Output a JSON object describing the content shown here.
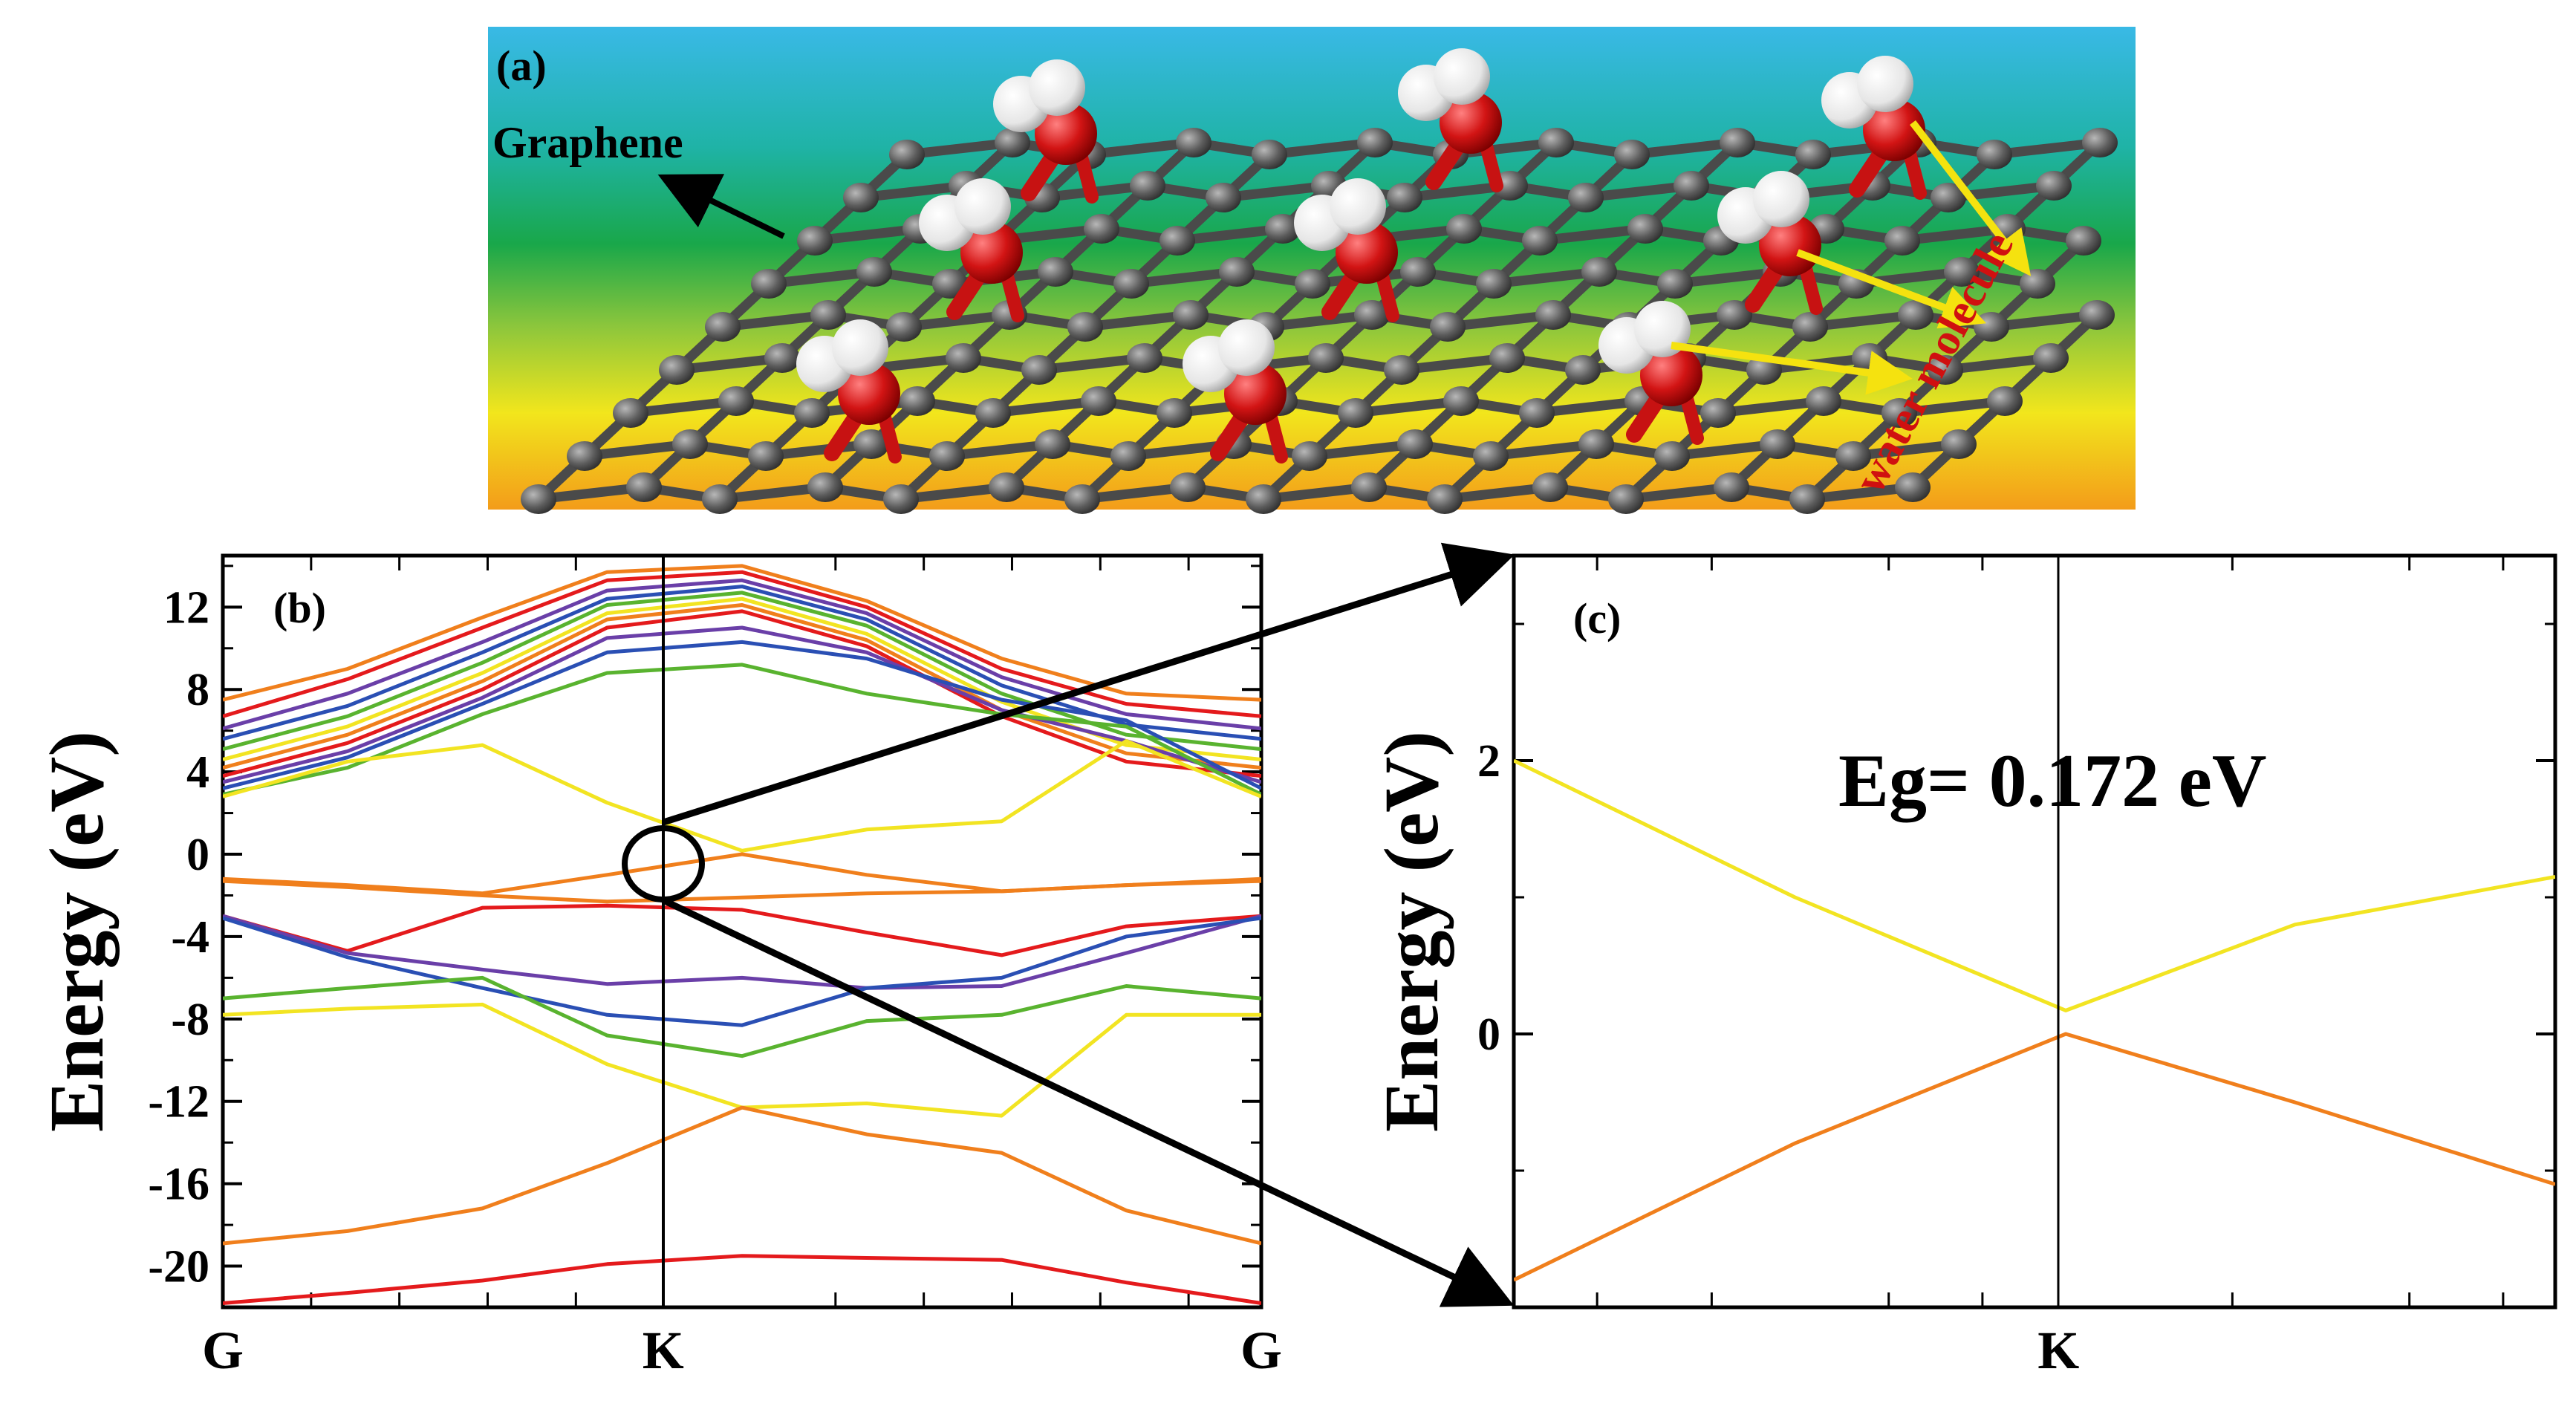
{
  "panel_a": {
    "letter": "(a)",
    "label_graphene": "Graphene",
    "label_water": "water molecule"
  },
  "colors": {
    "red": "#e41a1c",
    "orange": "#f07f1c",
    "yellow": "#f2e422",
    "green": "#59b32f",
    "blue": "#2a4fb4",
    "purple": "#6a3fa8",
    "carbon": "#5a5a5a",
    "oxygen": "#cc1010",
    "hydrogen": "#f2f2f2",
    "arrow_yellow": "#f5e20f"
  },
  "chart_data": [
    {
      "type": "line",
      "panel": "(b)",
      "ylabel": "Energy (eV)",
      "ylim": [
        -22,
        14.5
      ],
      "yticks": [
        12,
        8,
        4,
        0,
        -4,
        -8,
        -12,
        -16,
        -20
      ],
      "kpoints": [
        "G",
        "K",
        "G"
      ],
      "x": [
        0,
        0.12,
        0.25,
        0.37,
        0.5,
        0.62,
        0.75,
        0.87,
        1
      ],
      "series": [
        {
          "color": "orange",
          "values": [
            7.5,
            9.0,
            11.5,
            13.7,
            14.0,
            12.3,
            9.5,
            7.8,
            7.5
          ]
        },
        {
          "color": "red",
          "values": [
            6.7,
            8.5,
            11.0,
            13.3,
            13.7,
            12.0,
            9.0,
            7.3,
            6.7
          ]
        },
        {
          "color": "purple",
          "values": [
            6.1,
            7.8,
            10.3,
            12.8,
            13.3,
            11.7,
            8.6,
            6.8,
            6.1
          ]
        },
        {
          "color": "blue",
          "values": [
            5.6,
            7.2,
            9.8,
            12.4,
            13.0,
            11.4,
            8.2,
            6.3,
            5.6
          ]
        },
        {
          "color": "green",
          "values": [
            5.1,
            6.7,
            9.3,
            12.1,
            12.7,
            11.1,
            7.8,
            5.8,
            5.1
          ]
        },
        {
          "color": "yellow",
          "values": [
            4.6,
            6.2,
            8.8,
            11.7,
            12.4,
            10.7,
            7.4,
            5.3,
            4.6
          ]
        },
        {
          "color": "orange",
          "values": [
            4.2,
            5.8,
            8.4,
            11.4,
            12.1,
            10.4,
            7.0,
            4.9,
            4.2
          ]
        },
        {
          "color": "red",
          "values": [
            3.8,
            5.4,
            8.0,
            11.0,
            11.8,
            10.1,
            6.7,
            4.5,
            3.8
          ]
        },
        {
          "color": "purple",
          "values": [
            3.5,
            5.0,
            7.6,
            10.5,
            11.0,
            9.8,
            7.0,
            5.5,
            3.5
          ]
        },
        {
          "color": "blue",
          "values": [
            3.2,
            4.7,
            7.3,
            9.8,
            10.3,
            9.5,
            7.5,
            6.5,
            3.2
          ]
        },
        {
          "color": "green",
          "values": [
            2.9,
            4.2,
            6.8,
            8.8,
            9.2,
            7.8,
            6.8,
            6.2,
            2.9
          ]
        },
        {
          "color": "yellow",
          "values": [
            2.8,
            4.5,
            5.3,
            2.5,
            0.172,
            1.2,
            1.6,
            5.5,
            2.8
          ]
        },
        {
          "color": "orange",
          "values": [
            -1.3,
            -1.6,
            -2.0,
            -2.3,
            -2.1,
            -1.9,
            -1.8,
            -1.5,
            -1.3
          ]
        },
        {
          "color": "orange",
          "values": [
            -1.2,
            -1.5,
            -1.9,
            -1.0,
            0.0,
            -1.0,
            -1.8,
            -1.5,
            -1.2
          ]
        },
        {
          "color": "red",
          "values": [
            -3.0,
            -4.7,
            -2.6,
            -2.5,
            -2.7,
            -3.8,
            -4.9,
            -3.5,
            -3.0
          ]
        },
        {
          "color": "purple",
          "values": [
            -3.0,
            -4.8,
            -5.6,
            -6.3,
            -6.0,
            -6.5,
            -6.4,
            -4.8,
            -3.0
          ]
        },
        {
          "color": "blue",
          "values": [
            -3.1,
            -5.0,
            -6.5,
            -7.8,
            -8.3,
            -6.5,
            -6.0,
            -4.0,
            -3.1
          ]
        },
        {
          "color": "green",
          "values": [
            -7.0,
            -6.5,
            -6.0,
            -8.8,
            -9.8,
            -8.1,
            -7.8,
            -6.4,
            -7.0
          ]
        },
        {
          "color": "yellow",
          "values": [
            -7.8,
            -7.5,
            -7.3,
            -10.2,
            -12.3,
            -12.1,
            -12.7,
            -7.8,
            -7.8
          ]
        },
        {
          "color": "orange",
          "values": [
            -18.9,
            -18.3,
            -17.2,
            -15.0,
            -12.3,
            -13.6,
            -14.5,
            -17.3,
            -18.9
          ]
        },
        {
          "color": "red",
          "values": [
            -21.8,
            -21.3,
            -20.7,
            -19.9,
            -19.5,
            -19.6,
            -19.7,
            -20.8,
            -21.8
          ]
        }
      ]
    },
    {
      "type": "line",
      "panel": "(c)",
      "ylabel": "Energy (eV)",
      "ylim": [
        -2,
        3.5
      ],
      "yticks": [
        2,
        0
      ],
      "kpoints": [
        "K"
      ],
      "annotation": "Eg= 0.172 eV",
      "x": [
        0,
        0.27,
        0.53,
        0.75,
        1
      ],
      "series": [
        {
          "color": "yellow",
          "values": [
            2.0,
            1.0,
            0.172,
            0.8,
            1.15
          ]
        },
        {
          "color": "orange",
          "values": [
            -1.8,
            -0.8,
            0.0,
            -0.5,
            -1.1
          ]
        }
      ]
    }
  ]
}
